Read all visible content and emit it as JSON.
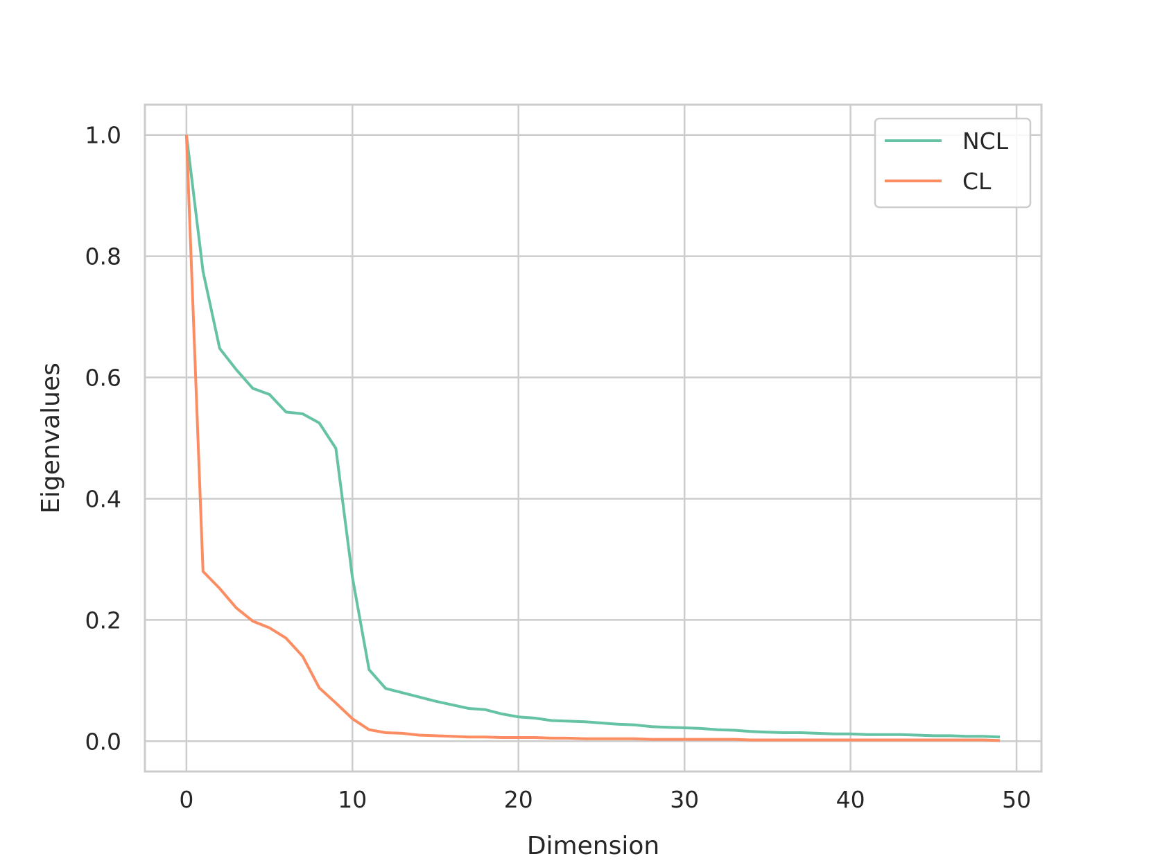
{
  "chart_data": {
    "type": "line",
    "title": "",
    "xlabel": "Dimension",
    "ylabel": "Eigenvalues",
    "xlim": [
      -2.5,
      51.5
    ],
    "ylim": [
      -0.05,
      1.05
    ],
    "xticks": [
      0,
      10,
      20,
      30,
      40,
      50
    ],
    "yticks": [
      0.0,
      0.2,
      0.4,
      0.6,
      0.8,
      1.0
    ],
    "xtick_labels": [
      "0",
      "10",
      "20",
      "30",
      "40",
      "50"
    ],
    "ytick_labels": [
      "0.0",
      "0.2",
      "0.4",
      "0.6",
      "0.8",
      "1.0"
    ],
    "grid": true,
    "legend_position": "top-right",
    "x": [
      0,
      1,
      2,
      3,
      4,
      5,
      6,
      7,
      8,
      9,
      10,
      11,
      12,
      13,
      14,
      15,
      16,
      17,
      18,
      19,
      20,
      21,
      22,
      23,
      24,
      25,
      26,
      27,
      28,
      29,
      30,
      31,
      32,
      33,
      34,
      35,
      36,
      37,
      38,
      39,
      40,
      41,
      42,
      43,
      44,
      45,
      46,
      47,
      48,
      49
    ],
    "series": [
      {
        "name": "NCL",
        "color": "#66c2a5",
        "values": [
          1.0,
          0.775,
          0.648,
          0.613,
          0.582,
          0.572,
          0.543,
          0.54,
          0.525,
          0.483,
          0.27,
          0.118,
          0.087,
          0.08,
          0.073,
          0.066,
          0.06,
          0.054,
          0.052,
          0.045,
          0.04,
          0.038,
          0.034,
          0.033,
          0.032,
          0.03,
          0.028,
          0.027,
          0.024,
          0.023,
          0.022,
          0.021,
          0.019,
          0.018,
          0.016,
          0.015,
          0.014,
          0.014,
          0.013,
          0.012,
          0.012,
          0.011,
          0.011,
          0.011,
          0.01,
          0.009,
          0.009,
          0.008,
          0.008,
          0.007
        ]
      },
      {
        "name": "CL",
        "color": "#fc8d62",
        "values": [
          1.0,
          0.28,
          0.252,
          0.22,
          0.198,
          0.187,
          0.17,
          0.14,
          0.088,
          0.063,
          0.037,
          0.019,
          0.014,
          0.013,
          0.01,
          0.009,
          0.008,
          0.007,
          0.007,
          0.006,
          0.006,
          0.006,
          0.005,
          0.005,
          0.004,
          0.004,
          0.004,
          0.004,
          0.003,
          0.003,
          0.003,
          0.003,
          0.003,
          0.003,
          0.002,
          0.002,
          0.002,
          0.002,
          0.002,
          0.002,
          0.002,
          0.002,
          0.002,
          0.002,
          0.002,
          0.002,
          0.002,
          0.002,
          0.002,
          0.001
        ]
      }
    ]
  }
}
